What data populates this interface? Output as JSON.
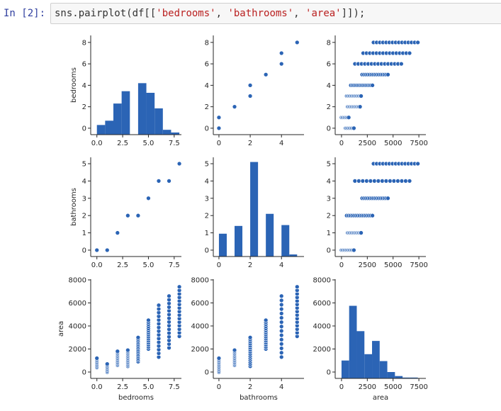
{
  "cell": {
    "prompt": "In [2]:",
    "code_parts": [
      {
        "text": "sns.pairplot(df[[",
        "kind": "plain"
      },
      {
        "text": "'bedrooms'",
        "kind": "str"
      },
      {
        "text": ", ",
        "kind": "plain"
      },
      {
        "text": "'bathrooms'",
        "kind": "str"
      },
      {
        "text": ", ",
        "kind": "plain"
      },
      {
        "text": "'area'",
        "kind": "str"
      },
      {
        "text": "]]);",
        "kind": "plain"
      }
    ]
  },
  "chart_data": {
    "type": "pairplot",
    "color": "#2b64b5",
    "variables": [
      "bedrooms",
      "bathrooms",
      "area"
    ],
    "xlim": [
      [
        -0.6,
        8.2
      ],
      [
        -0.36,
        5.44
      ],
      [
        -614,
        8180
      ]
    ],
    "ylim": [
      [
        -0.6,
        8.65
      ],
      [
        -0.37,
        5.37
      ],
      [
        -554,
        8060
      ]
    ],
    "xticks": [
      [
        "0.0",
        "2.5",
        "5.0",
        "7.5"
      ],
      [
        "0",
        "2",
        "4"
      ],
      [
        "0",
        "2500",
        "5000",
        "7500"
      ]
    ],
    "yticks": [
      [
        "0",
        "2",
        "4",
        "6",
        "8"
      ],
      [
        "0",
        "1",
        "2",
        "3",
        "4",
        "5"
      ],
      [
        "0",
        "2000",
        "4000",
        "6000",
        "8000"
      ]
    ],
    "histograms": [
      {
        "variable": "bedrooms",
        "bin_start": 0,
        "bin_width": 0.8,
        "bar_tops": [
          0.3,
          0.7,
          2.3,
          3.45,
          null,
          4.2,
          3.3,
          1.85,
          -0.15,
          -0.4
        ]
      },
      {
        "variable": "bathrooms",
        "bin_start": 0,
        "bin_width": 0.5,
        "bar_tops": [
          0.95,
          null,
          1.4,
          null,
          5.1,
          null,
          2.1,
          null,
          1.45,
          -0.25
        ]
      },
      {
        "variable": "area",
        "bin_start": 0,
        "bin_width": 740,
        "bar_tops": [
          1000,
          5750,
          3550,
          1550,
          2700,
          950,
          0,
          -350,
          -480,
          -480
        ]
      }
    ],
    "bedrooms_bathrooms_pairs": [
      [
        0,
        0
      ],
      [
        1,
        0
      ],
      [
        2,
        1
      ],
      [
        3,
        2
      ],
      [
        4,
        2
      ],
      [
        5,
        3
      ],
      [
        6,
        4
      ],
      [
        7,
        4
      ],
      [
        8,
        5
      ]
    ],
    "area_range_by_bedrooms": [
      [
        0,
        [
          400,
          1200
        ]
      ],
      [
        1,
        [
          0,
          700
        ]
      ],
      [
        2,
        [
          600,
          1800
        ]
      ],
      [
        3,
        [
          500,
          1900
        ]
      ],
      [
        4,
        [
          900,
          3000
        ]
      ],
      [
        5,
        [
          2000,
          4500
        ]
      ],
      [
        6,
        [
          1300,
          5800
        ]
      ],
      [
        7,
        [
          2100,
          6600
        ]
      ],
      [
        8,
        [
          3100,
          7400
        ]
      ]
    ],
    "area_range_by_bathrooms": [
      [
        0,
        [
          0,
          1200
        ]
      ],
      [
        1,
        [
          600,
          1900
        ]
      ],
      [
        2,
        [
          500,
          3000
        ]
      ],
      [
        3,
        [
          2000,
          4500
        ]
      ],
      [
        4,
        [
          1300,
          6600
        ]
      ],
      [
        5,
        [
          3100,
          7400
        ]
      ]
    ]
  }
}
